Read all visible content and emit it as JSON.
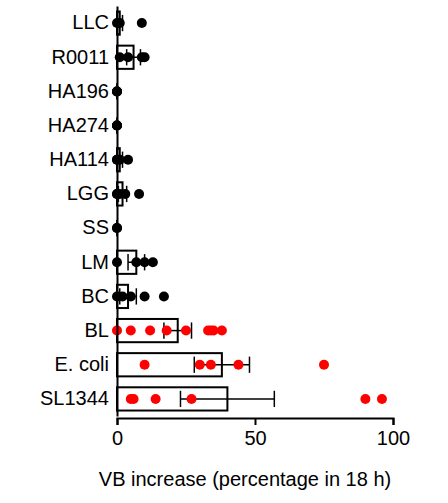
{
  "chart_data": {
    "type": "bar",
    "orientation": "horizontal",
    "x_label": "VB increase (percentage in 18 h)",
    "categories": [
      "LLC",
      "R0011",
      "HA196",
      "HA274",
      "HA114",
      "LGG",
      "SS",
      "LM",
      "BC",
      "BL",
      "E. coli",
      "SL1344"
    ],
    "values": [
      1,
      6,
      0,
      0,
      1,
      2,
      0,
      7,
      4,
      22,
      38,
      40
    ],
    "error": [
      1,
      2.5,
      0,
      0,
      1,
      1.5,
      0,
      3,
      3,
      5,
      10,
      17
    ],
    "points": [
      [
        0,
        0.5,
        1,
        9
      ],
      [
        1,
        4,
        9,
        10
      ],
      [
        0,
        0,
        0
      ],
      [
        0,
        0,
        0
      ],
      [
        0,
        0,
        1,
        4
      ],
      [
        0,
        0,
        1,
        3,
        8
      ],
      [
        0,
        0
      ],
      [
        0,
        7,
        10,
        13
      ],
      [
        0,
        2,
        5,
        10,
        17
      ],
      [
        0,
        5,
        12,
        18,
        25,
        33,
        34,
        35,
        38
      ],
      [
        10,
        30,
        34,
        44,
        75
      ],
      [
        5,
        6,
        14,
        27,
        90,
        96
      ]
    ],
    "color": "#ffffff",
    "colors": [
      "#000000",
      "#000000",
      "#000000",
      "#000000",
      "#000000",
      "#000000",
      "#000000",
      "#000000",
      "#000000",
      "#ff0000",
      "#ff0000",
      "#ff0000"
    ],
    "xlim": [
      0,
      100
    ],
    "xticks": [
      0,
      50,
      100
    ],
    "grid": false
  }
}
